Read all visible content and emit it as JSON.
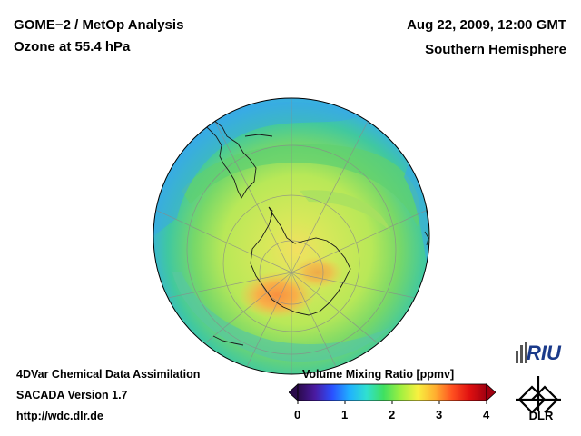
{
  "header": {
    "title_line1": "GOME−2 / MetOp Analysis",
    "title_line2": "Ozone at 55.4 hPa",
    "datetime": "Aug 22, 2009, 12:00 GMT",
    "region": "Southern Hemisphere"
  },
  "footer": {
    "line1": "4DVar Chemical Data Assimilation",
    "line2": "SACADA Version 1.7",
    "line3": "http://wdc.dlr.de"
  },
  "colorbar": {
    "title": "Volume Mixing Ratio [ppmv]",
    "min": 0,
    "max": 4,
    "ticks": [
      "0",
      "1",
      "2",
      "3",
      "4"
    ],
    "colors": [
      "#2a0a4a",
      "#4a1aa0",
      "#2a50ff",
      "#20b0ff",
      "#30e0d0",
      "#40e060",
      "#a0f040",
      "#f8f040",
      "#ffb030",
      "#ff5020",
      "#e01010",
      "#a00010"
    ]
  },
  "logos": {
    "riu": "RIU",
    "dlr": "DLR"
  },
  "map": {
    "projection": "orthographic",
    "center": "South Pole",
    "field": "ozone volume mixing ratio",
    "colors": {
      "outer": "#3aa8e6",
      "ring": "#58d080",
      "main": "#c6e85a",
      "vortex_edge": "#f0e85a",
      "high": "#f8a040"
    }
  }
}
